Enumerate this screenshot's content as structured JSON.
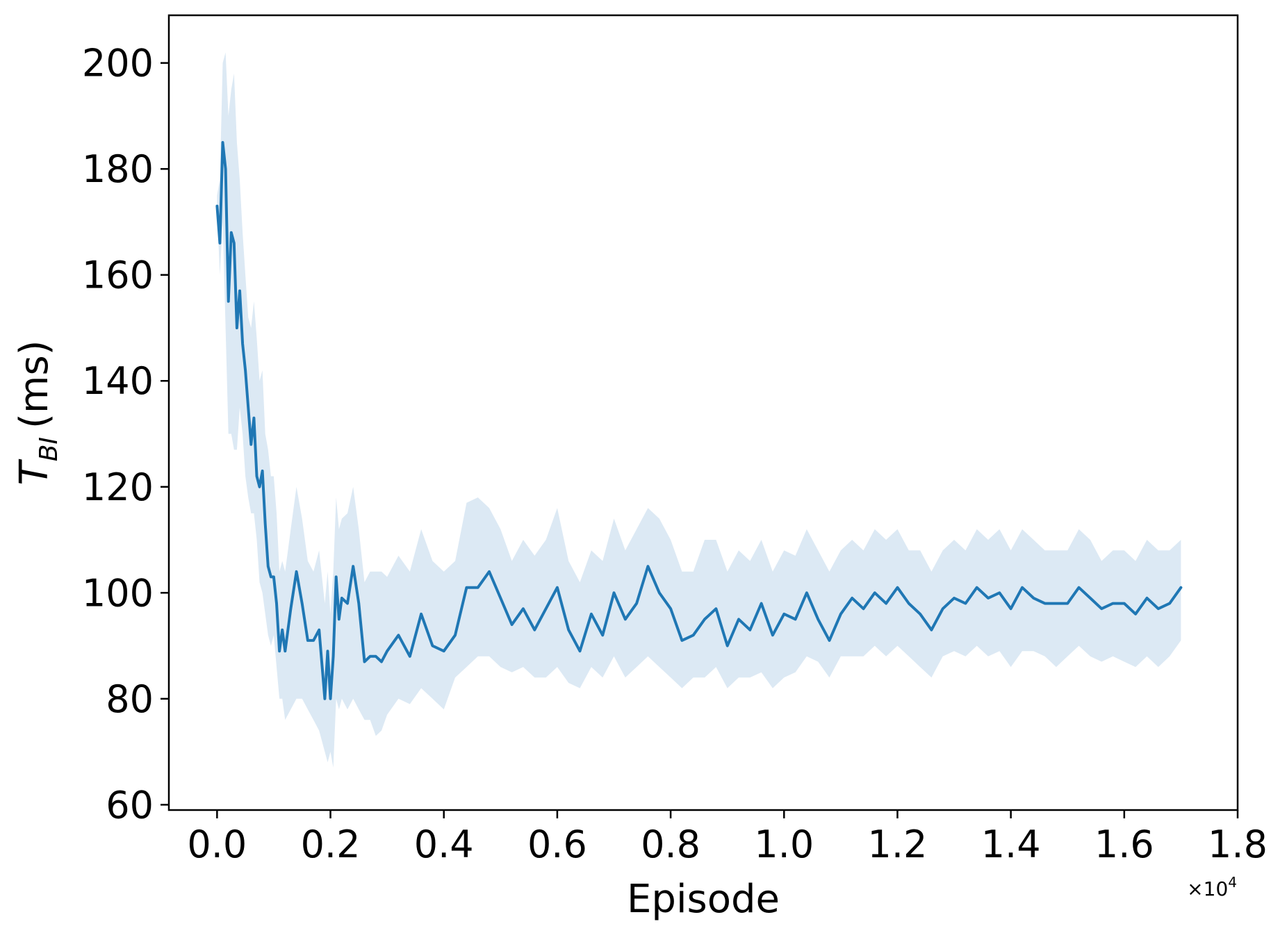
{
  "chart_data": {
    "type": "line",
    "title": "",
    "xlabel": "Episode",
    "ylabel": {
      "symbol": "T",
      "subscript": "BI",
      "unit": "(ms)"
    },
    "x_offset_label": {
      "base": "×10",
      "exponent": "4"
    },
    "xlim": [
      -0.085,
      1.8
    ],
    "ylim": [
      59,
      209
    ],
    "x_ticks": [
      0.0,
      0.2,
      0.4,
      0.6,
      0.8,
      1.0,
      1.2,
      1.4,
      1.6,
      1.8
    ],
    "x_tick_labels": [
      "0.0",
      "0.2",
      "0.4",
      "0.6",
      "0.8",
      "1.0",
      "1.2",
      "1.4",
      "1.6",
      "1.8"
    ],
    "y_ticks": [
      60,
      80,
      100,
      120,
      140,
      160,
      180,
      200
    ],
    "y_tick_labels": [
      "60",
      "80",
      "100",
      "120",
      "140",
      "160",
      "180",
      "200"
    ],
    "grid": false,
    "legend": "none",
    "series": [
      {
        "color": "#1f77b4",
        "band_color": "#dce9f4",
        "x": [
          0.0,
          0.005,
          0.01,
          0.015,
          0.02,
          0.025,
          0.03,
          0.035,
          0.04,
          0.045,
          0.05,
          0.055,
          0.06,
          0.065,
          0.07,
          0.075,
          0.08,
          0.085,
          0.09,
          0.095,
          0.1,
          0.105,
          0.11,
          0.115,
          0.12,
          0.13,
          0.14,
          0.15,
          0.16,
          0.17,
          0.18,
          0.19,
          0.195,
          0.2,
          0.205,
          0.21,
          0.215,
          0.22,
          0.23,
          0.24,
          0.25,
          0.26,
          0.27,
          0.28,
          0.29,
          0.3,
          0.32,
          0.34,
          0.36,
          0.38,
          0.4,
          0.42,
          0.44,
          0.46,
          0.48,
          0.5,
          0.52,
          0.54,
          0.56,
          0.58,
          0.6,
          0.62,
          0.64,
          0.66,
          0.68,
          0.7,
          0.72,
          0.74,
          0.76,
          0.78,
          0.8,
          0.82,
          0.84,
          0.86,
          0.88,
          0.9,
          0.92,
          0.94,
          0.96,
          0.98,
          1.0,
          1.02,
          1.04,
          1.06,
          1.08,
          1.1,
          1.12,
          1.14,
          1.16,
          1.18,
          1.2,
          1.22,
          1.24,
          1.26,
          1.28,
          1.3,
          1.32,
          1.34,
          1.36,
          1.38,
          1.4,
          1.42,
          1.44,
          1.46,
          1.48,
          1.5,
          1.52,
          1.54,
          1.56,
          1.58,
          1.6,
          1.62,
          1.64,
          1.66,
          1.68,
          1.7
        ],
        "mean": [
          173,
          166,
          185,
          180,
          155,
          168,
          166,
          150,
          157,
          147,
          142,
          135,
          128,
          133,
          122,
          120,
          123,
          113,
          105,
          103,
          103,
          98,
          89,
          93,
          89,
          97,
          104,
          98,
          91,
          91,
          93,
          80,
          89,
          80,
          88,
          103,
          95,
          99,
          98,
          105,
          98,
          87,
          88,
          88,
          87,
          89,
          92,
          88,
          96,
          90,
          89,
          92,
          101,
          101,
          104,
          99,
          94,
          97,
          93,
          97,
          101,
          93,
          89,
          96,
          92,
          100,
          95,
          98,
          105,
          100,
          97,
          91,
          92,
          95,
          97,
          90,
          95,
          93,
          98,
          92,
          96,
          95,
          100,
          95,
          91,
          96,
          99,
          97,
          100,
          98,
          101,
          98,
          96,
          93,
          97,
          99,
          98,
          101,
          99,
          100,
          97,
          101,
          99,
          98,
          98,
          98,
          101,
          99,
          97,
          98,
          98,
          96,
          99,
          97,
          98,
          101
        ],
        "lower": [
          172,
          160,
          170,
          150,
          130,
          130,
          127,
          127,
          135,
          130,
          122,
          118,
          115,
          115,
          110,
          102,
          100,
          96,
          92,
          90,
          92,
          86,
          80,
          80,
          76,
          78,
          80,
          80,
          78,
          76,
          74,
          70,
          68,
          70,
          67,
          80,
          78,
          80,
          78,
          80,
          78,
          76,
          76,
          73,
          74,
          77,
          80,
          79,
          82,
          80,
          78,
          84,
          86,
          88,
          88,
          86,
          85,
          86,
          84,
          84,
          86,
          83,
          82,
          86,
          84,
          88,
          84,
          86,
          88,
          86,
          84,
          82,
          84,
          84,
          86,
          82,
          84,
          84,
          85,
          82,
          84,
          85,
          88,
          87,
          84,
          88,
          88,
          88,
          90,
          88,
          90,
          88,
          86,
          84,
          88,
          89,
          88,
          90,
          88,
          89,
          86,
          89,
          89,
          88,
          86,
          88,
          90,
          88,
          87,
          88,
          87,
          86,
          88,
          86,
          88,
          91
        ],
        "upper": [
          175,
          178,
          200,
          202,
          190,
          195,
          198,
          185,
          178,
          168,
          160,
          152,
          150,
          155,
          148,
          140,
          142,
          130,
          127,
          122,
          122,
          115,
          104,
          106,
          104,
          112,
          120,
          114,
          106,
          104,
          108,
          98,
          104,
          96,
          104,
          118,
          112,
          114,
          115,
          120,
          112,
          102,
          104,
          104,
          104,
          103,
          107,
          104,
          112,
          106,
          104,
          106,
          117,
          118,
          116,
          112,
          106,
          110,
          107,
          110,
          116,
          106,
          102,
          108,
          106,
          114,
          108,
          112,
          116,
          114,
          110,
          104,
          104,
          110,
          110,
          104,
          108,
          106,
          110,
          104,
          108,
          107,
          112,
          108,
          104,
          108,
          110,
          108,
          112,
          110,
          112,
          108,
          108,
          104,
          108,
          110,
          108,
          112,
          110,
          112,
          108,
          112,
          110,
          108,
          108,
          108,
          112,
          110,
          106,
          108,
          108,
          106,
          110,
          108,
          108,
          110
        ]
      }
    ]
  }
}
